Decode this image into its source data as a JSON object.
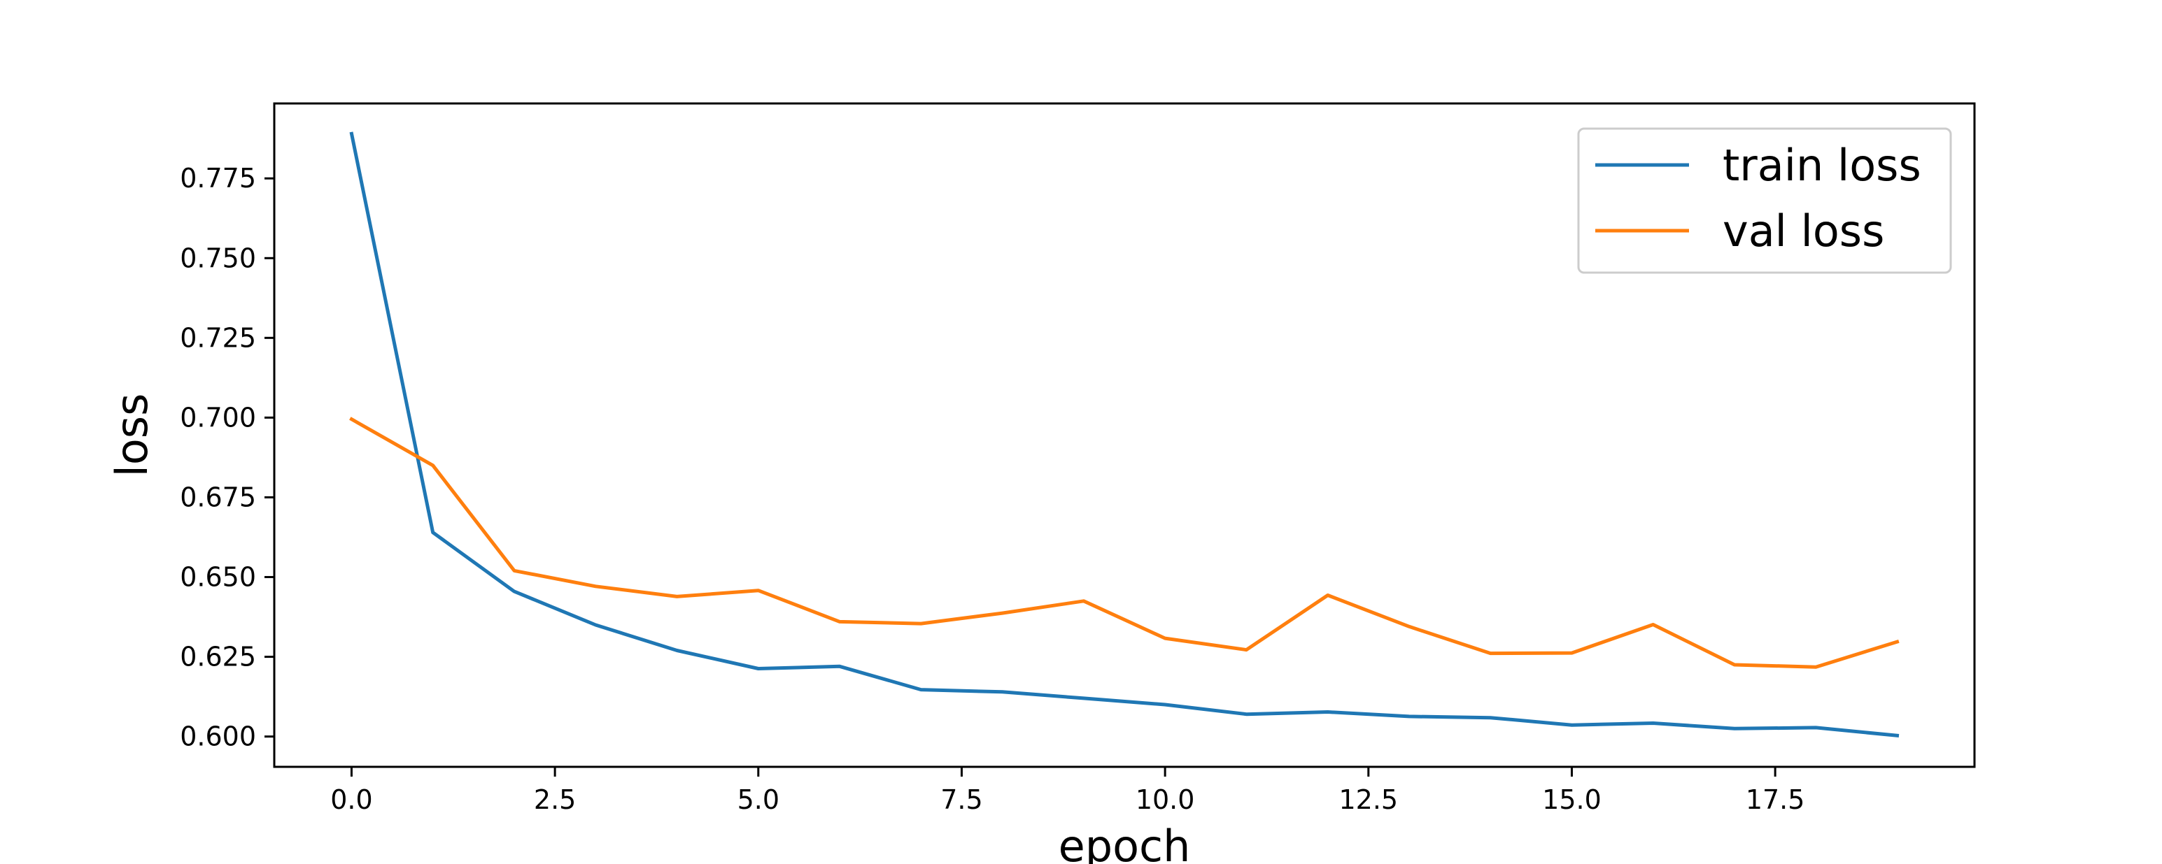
{
  "chart_data": {
    "type": "line",
    "title": "",
    "xlabel": "epoch",
    "ylabel": "loss",
    "xlim": [
      -0.95,
      19.95
    ],
    "ylim": [
      0.5905,
      0.7985
    ],
    "xticks": [
      0.0,
      2.5,
      5.0,
      7.5,
      10.0,
      12.5,
      15.0,
      17.5
    ],
    "xtick_labels": [
      "0.0",
      "2.5",
      "5.0",
      "7.5",
      "10.0",
      "12.5",
      "15.0",
      "17.5"
    ],
    "yticks": [
      0.6,
      0.625,
      0.65,
      0.675,
      0.7,
      0.725,
      0.75,
      0.775
    ],
    "ytick_labels": [
      "0.600",
      "0.625",
      "0.650",
      "0.675",
      "0.700",
      "0.725",
      "0.750",
      "0.775"
    ],
    "grid": false,
    "legend_position": "top-right",
    "x": [
      0,
      1,
      2,
      3,
      4,
      5,
      6,
      7,
      8,
      9,
      10,
      11,
      12,
      13,
      14,
      15,
      16,
      17,
      18,
      19
    ],
    "series": [
      {
        "name": "train loss",
        "color": "#1f77b4",
        "values": [
          0.789,
          0.664,
          0.6455,
          0.635,
          0.627,
          0.6213,
          0.622,
          0.6147,
          0.614,
          0.612,
          0.61,
          0.607,
          0.6077,
          0.6063,
          0.6059,
          0.6036,
          0.6042,
          0.6025,
          0.6028,
          0.6003
        ]
      },
      {
        "name": "val loss",
        "color": "#ff7f0e",
        "values": [
          0.6995,
          0.685,
          0.652,
          0.6471,
          0.6439,
          0.6458,
          0.636,
          0.6354,
          0.6387,
          0.6425,
          0.6308,
          0.6272,
          0.6443,
          0.6345,
          0.6261,
          0.6262,
          0.6351,
          0.6225,
          0.6218,
          0.6297
        ]
      }
    ]
  }
}
